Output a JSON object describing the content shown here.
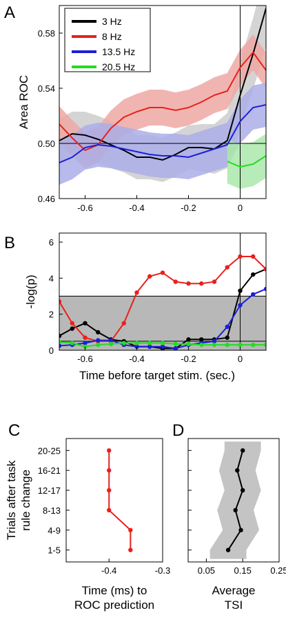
{
  "chart_data": [
    {
      "panel": "A",
      "type": "line",
      "ylabel": "Area ROC",
      "xlim": [
        -0.7,
        0.1
      ],
      "ylim": [
        0.46,
        0.6
      ],
      "yticks": [
        0.46,
        0.5,
        0.54,
        0.58
      ],
      "ytick_labels": [
        "0.46",
        "0.50",
        "0.54",
        "0.58"
      ],
      "xticks": [
        -0.6,
        -0.4,
        -0.2,
        0
      ],
      "xtick_labels": [
        "-0.6",
        "-0.4",
        "-0.2",
        "0"
      ],
      "hline": 0.5,
      "vline": 0,
      "legend_position": "top-left",
      "x": [
        -0.7,
        -0.65,
        -0.6,
        -0.55,
        -0.5,
        -0.45,
        -0.4,
        -0.35,
        -0.3,
        -0.25,
        -0.2,
        -0.15,
        -0.1,
        -0.05,
        0,
        0.05,
        0.1
      ],
      "series": [
        {
          "name": "3 Hz",
          "color": "#000000",
          "band_color": "#cccccc",
          "values": [
            0.502,
            0.507,
            0.506,
            0.503,
            0.499,
            0.495,
            0.49,
            0.49,
            0.488,
            0.492,
            0.497,
            0.497,
            0.496,
            0.502,
            0.535,
            0.565,
            0.598
          ],
          "band": [
            0.016,
            0.016,
            0.017,
            0.017,
            0.017,
            0.016,
            0.016,
            0.016,
            0.016,
            0.016,
            0.016,
            0.017,
            0.018,
            0.02,
            0.024,
            0.026,
            0.028
          ]
        },
        {
          "name": "8 Hz",
          "color": "#e8211b",
          "band_color": "#eea8a3",
          "values": [
            0.514,
            0.504,
            0.495,
            0.499,
            0.511,
            0.519,
            0.523,
            0.526,
            0.526,
            0.524,
            0.526,
            0.53,
            0.535,
            0.538,
            0.555,
            0.566,
            0.553
          ],
          "band": [
            0.013,
            0.013,
            0.013,
            0.013,
            0.013,
            0.013,
            0.013,
            0.013,
            0.013,
            0.013,
            0.013,
            0.013,
            0.013,
            0.013,
            0.013,
            0.013,
            0.013
          ]
        },
        {
          "name": "13.5 Hz",
          "color": "#1c1fd8",
          "band_color": "#aaaee8",
          "values": [
            0.486,
            0.49,
            0.497,
            0.499,
            0.498,
            0.496,
            0.494,
            0.492,
            0.491,
            0.491,
            0.49,
            0.493,
            0.496,
            0.499,
            0.516,
            0.526,
            0.528
          ],
          "band": [
            0.016,
            0.016,
            0.016,
            0.016,
            0.016,
            0.016,
            0.016,
            0.016,
            0.016,
            0.016,
            0.016,
            0.016,
            0.016,
            0.016,
            0.016,
            0.016,
            0.016
          ]
        },
        {
          "name": "20.5 Hz",
          "color": "#22dd22",
          "band_color": "#aae8aa",
          "values": [
            null,
            null,
            null,
            null,
            null,
            null,
            null,
            null,
            null,
            null,
            null,
            null,
            null,
            0.487,
            0.483,
            0.485,
            0.491
          ],
          "band": [
            null,
            null,
            null,
            null,
            null,
            null,
            null,
            null,
            null,
            null,
            null,
            null,
            null,
            0.016,
            0.016,
            0.016,
            0.016
          ]
        }
      ]
    },
    {
      "panel": "B",
      "type": "line",
      "ylabel": "-log(p)",
      "xlabel": "Time before target stim. (sec.)",
      "xlim": [
        -0.7,
        0.1
      ],
      "ylim": [
        0,
        6.5
      ],
      "yticks": [
        0,
        2,
        4,
        6
      ],
      "ytick_labels": [
        "0",
        "2",
        "4",
        "6"
      ],
      "xticks": [
        -0.6,
        -0.4,
        -0.2,
        0
      ],
      "xtick_labels": [
        "-0.6",
        "-0.4",
        "-0.2",
        "0"
      ],
      "shaded_region": [
        0,
        3
      ],
      "hline": 0.5,
      "vline": 0,
      "x": [
        -0.7,
        -0.65,
        -0.6,
        -0.55,
        -0.5,
        -0.45,
        -0.4,
        -0.35,
        -0.3,
        -0.25,
        -0.2,
        -0.15,
        -0.1,
        -0.05,
        0,
        0.05,
        0.1
      ],
      "series": [
        {
          "name": "3 Hz",
          "color": "#000000",
          "values": [
            0.8,
            1.2,
            1.5,
            1.0,
            0.6,
            0.5,
            0.2,
            0.2,
            0.1,
            0.1,
            0.6,
            0.6,
            0.6,
            0.7,
            3.3,
            4.2,
            4.5
          ]
        },
        {
          "name": "8 Hz",
          "color": "#e8211b",
          "values": [
            2.7,
            1.5,
            0.7,
            0.5,
            0.5,
            1.5,
            3.2,
            4.1,
            4.3,
            3.8,
            3.7,
            3.7,
            3.8,
            4.6,
            5.2,
            5.2,
            4.5
          ]
        },
        {
          "name": "13.5 Hz",
          "color": "#1c1fd8",
          "values": [
            0.25,
            0.3,
            0.4,
            0.55,
            0.55,
            0.3,
            0.2,
            0.2,
            0.2,
            0.1,
            0.3,
            0.4,
            0.5,
            1.3,
            2.5,
            3.1,
            3.4
          ]
        },
        {
          "name": "20.5 Hz",
          "color": "#22dd22",
          "values": [
            0.45,
            0.4,
            0.2,
            0.3,
            0.35,
            0.4,
            0.4,
            0.4,
            0.4,
            0.35,
            0.35,
            0.3,
            0.3,
            0.3,
            0.3,
            0.3,
            0.3
          ]
        }
      ]
    },
    {
      "panel": "C",
      "type": "line",
      "ylabel_lines": [
        "Trials after task",
        "rule change"
      ],
      "xlabel_lines": [
        "Time (ms) to",
        "ROC prediction"
      ],
      "xlim": [
        -0.48,
        -0.3
      ],
      "xticks": [
        -0.4,
        -0.3
      ],
      "xtick_labels": [
        "-0.4",
        "-0.3"
      ],
      "categories": [
        "1-5",
        "4-9",
        "8-13",
        "12-17",
        "16-21",
        "20-25"
      ],
      "series": [
        {
          "name": "",
          "color": "#e8211b",
          "values": [
            -0.36,
            -0.36,
            -0.4,
            -0.4,
            -0.4,
            -0.4
          ]
        }
      ]
    },
    {
      "panel": "D",
      "type": "line",
      "xlabel_lines": [
        "Average",
        "TSI"
      ],
      "xlim": [
        0.0,
        0.25
      ],
      "xticks": [
        0.05,
        0.15,
        0.25
      ],
      "xtick_labels": [
        "0.05",
        "0.15",
        "0.25"
      ],
      "categories": [
        "1-5",
        "4-9",
        "8-13",
        "12-17",
        "16-21",
        "20-25"
      ],
      "series": [
        {
          "name": "",
          "color": "#000000",
          "band_color": "#c4c4c4",
          "values": [
            0.11,
            0.145,
            0.13,
            0.15,
            0.135,
            0.15
          ],
          "band": [
            0.05,
            0.05,
            0.05,
            0.05,
            0.05,
            0.05
          ]
        }
      ]
    }
  ]
}
